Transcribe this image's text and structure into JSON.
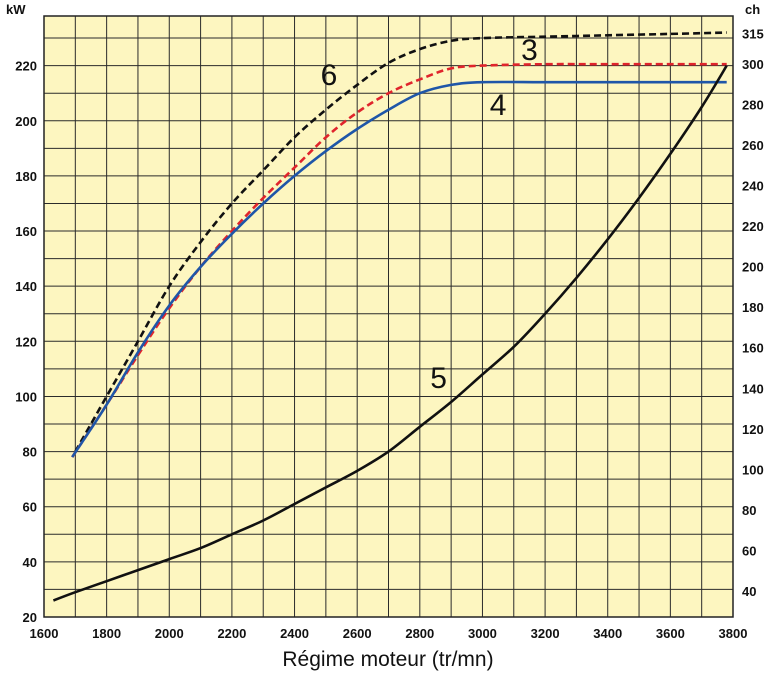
{
  "chart_data": {
    "type": "line",
    "xlabel": "Régime moteur (tr/mn)",
    "y_left_unit": "kW",
    "y_right_unit": "ch",
    "xlim": [
      1600,
      3800
    ],
    "ylim": [
      20,
      238
    ],
    "grid": true,
    "background": "#fdf6c0",
    "x_ticks": [
      1600,
      1800,
      2000,
      2200,
      2400,
      2600,
      2800,
      3000,
      3200,
      3400,
      3600,
      3800
    ],
    "y_left_ticks": [
      20,
      40,
      60,
      80,
      100,
      120,
      140,
      160,
      180,
      200,
      220
    ],
    "y_right_ticks": [
      40,
      60,
      80,
      100,
      120,
      140,
      160,
      180,
      200,
      220,
      240,
      260,
      280,
      300,
      315
    ],
    "series": [
      {
        "name": "6",
        "color": "#111111",
        "style": "dashed",
        "label_at": [
          2510,
          213
        ],
        "points": [
          [
            1700,
            80
          ],
          [
            1800,
            100
          ],
          [
            1900,
            120
          ],
          [
            2000,
            140
          ],
          [
            2100,
            156
          ],
          [
            2200,
            170
          ],
          [
            2300,
            182
          ],
          [
            2400,
            194
          ],
          [
            2500,
            204
          ],
          [
            2600,
            213
          ],
          [
            2700,
            221
          ],
          [
            2800,
            226
          ],
          [
            2900,
            229
          ],
          [
            3000,
            230
          ],
          [
            3200,
            230.5
          ],
          [
            3400,
            231
          ],
          [
            3600,
            231.5
          ],
          [
            3780,
            232
          ]
        ]
      },
      {
        "name": "3",
        "color": "#e0242c",
        "style": "dashed",
        "label_at": [
          3150,
          222
        ],
        "points": [
          [
            1690,
            78
          ],
          [
            1800,
            97
          ],
          [
            1900,
            115
          ],
          [
            2000,
            132
          ],
          [
            2100,
            147
          ],
          [
            2200,
            160
          ],
          [
            2300,
            172
          ],
          [
            2400,
            183
          ],
          [
            2500,
            194
          ],
          [
            2600,
            203
          ],
          [
            2700,
            210
          ],
          [
            2800,
            215
          ],
          [
            2900,
            219
          ],
          [
            3000,
            220
          ],
          [
            3200,
            220.5
          ],
          [
            3400,
            220.5
          ],
          [
            3600,
            220.5
          ],
          [
            3780,
            220.5
          ]
        ]
      },
      {
        "name": "4",
        "color": "#1f56a8",
        "style": "solid",
        "label_at": [
          3050,
          202
        ],
        "points": [
          [
            1690,
            78
          ],
          [
            1800,
            97
          ],
          [
            1900,
            116
          ],
          [
            2000,
            133
          ],
          [
            2100,
            147
          ],
          [
            2200,
            159
          ],
          [
            2300,
            170
          ],
          [
            2400,
            180
          ],
          [
            2500,
            189
          ],
          [
            2600,
            197
          ],
          [
            2700,
            204
          ],
          [
            2800,
            210
          ],
          [
            2900,
            213
          ],
          [
            3000,
            214
          ],
          [
            3200,
            214
          ],
          [
            3400,
            214
          ],
          [
            3600,
            214
          ],
          [
            3780,
            214
          ]
        ]
      },
      {
        "name": "5",
        "color": "#111111",
        "style": "solid",
        "label_at": [
          2860,
          103
        ],
        "points": [
          [
            1630,
            26
          ],
          [
            1700,
            29
          ],
          [
            1800,
            33
          ],
          [
            1900,
            37
          ],
          [
            2000,
            41
          ],
          [
            2100,
            45
          ],
          [
            2200,
            50
          ],
          [
            2300,
            55
          ],
          [
            2400,
            61
          ],
          [
            2500,
            67
          ],
          [
            2600,
            73
          ],
          [
            2700,
            80
          ],
          [
            2800,
            89
          ],
          [
            2900,
            98
          ],
          [
            3000,
            108
          ],
          [
            3100,
            118
          ],
          [
            3200,
            130
          ],
          [
            3300,
            143
          ],
          [
            3400,
            157
          ],
          [
            3500,
            172
          ],
          [
            3600,
            188
          ],
          [
            3700,
            205
          ],
          [
            3780,
            220
          ]
        ]
      }
    ]
  }
}
